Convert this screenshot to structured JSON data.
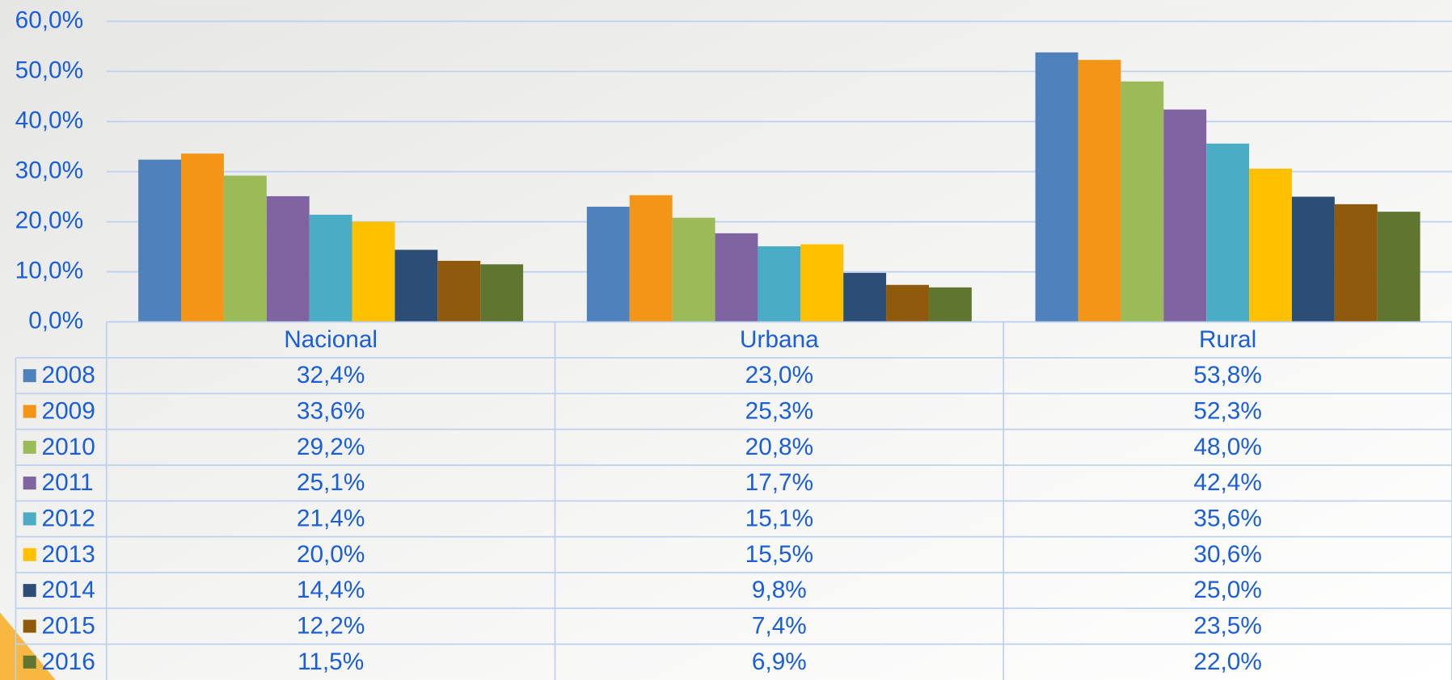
{
  "chart_data": {
    "type": "bar",
    "categories": [
      "Nacional",
      "Urbana",
      "Rural"
    ],
    "series": [
      {
        "name": "2008",
        "color": "#4f81bd",
        "values": [
          32.4,
          23.0,
          53.8
        ],
        "value_labels": [
          "32,4%",
          "23,0%",
          "53,8%"
        ]
      },
      {
        "name": "2009",
        "color": "#f39516",
        "values": [
          33.6,
          25.3,
          52.3
        ],
        "value_labels": [
          "33,6%",
          "25,3%",
          "52,3%"
        ]
      },
      {
        "name": "2010",
        "color": "#9bbb59",
        "values": [
          29.2,
          20.8,
          48.0
        ],
        "value_labels": [
          "29,2%",
          "20,8%",
          "48,0%"
        ]
      },
      {
        "name": "2011",
        "color": "#8064a2",
        "values": [
          25.1,
          17.7,
          42.4
        ],
        "value_labels": [
          "25,1%",
          "17,7%",
          "42,4%"
        ]
      },
      {
        "name": "2012",
        "color": "#4bacc6",
        "values": [
          21.4,
          15.1,
          35.6
        ],
        "value_labels": [
          "21,4%",
          "15,1%",
          "35,6%"
        ]
      },
      {
        "name": "2013",
        "color": "#ffc000",
        "values": [
          20.0,
          15.5,
          30.6
        ],
        "value_labels": [
          "20,0%",
          "15,5%",
          "30,6%"
        ]
      },
      {
        "name": "2014",
        "color": "#2c4d75",
        "values": [
          14.4,
          9.8,
          25.0
        ],
        "value_labels": [
          "14,4%",
          "9,8%",
          "25,0%"
        ]
      },
      {
        "name": "2015",
        "color": "#8f5a0c",
        "values": [
          12.2,
          7.4,
          23.5
        ],
        "value_labels": [
          "12,2%",
          "7,4%",
          "23,5%"
        ]
      },
      {
        "name": "2016",
        "color": "#5f7530",
        "values": [
          11.5,
          6.9,
          22.0
        ],
        "value_labels": [
          "11,5%",
          "6,9%",
          "22,0%"
        ]
      }
    ],
    "ylim": [
      0,
      60
    ],
    "yticks": [
      {
        "value": 0,
        "label": "0,0%"
      },
      {
        "value": 10,
        "label": "10,0%"
      },
      {
        "value": 20,
        "label": "20,0%"
      },
      {
        "value": 30,
        "label": "30,0%"
      },
      {
        "value": 40,
        "label": "40,0%"
      },
      {
        "value": 50,
        "label": "50,0%"
      },
      {
        "value": 60,
        "label": "60,0%"
      }
    ],
    "grid": true
  }
}
